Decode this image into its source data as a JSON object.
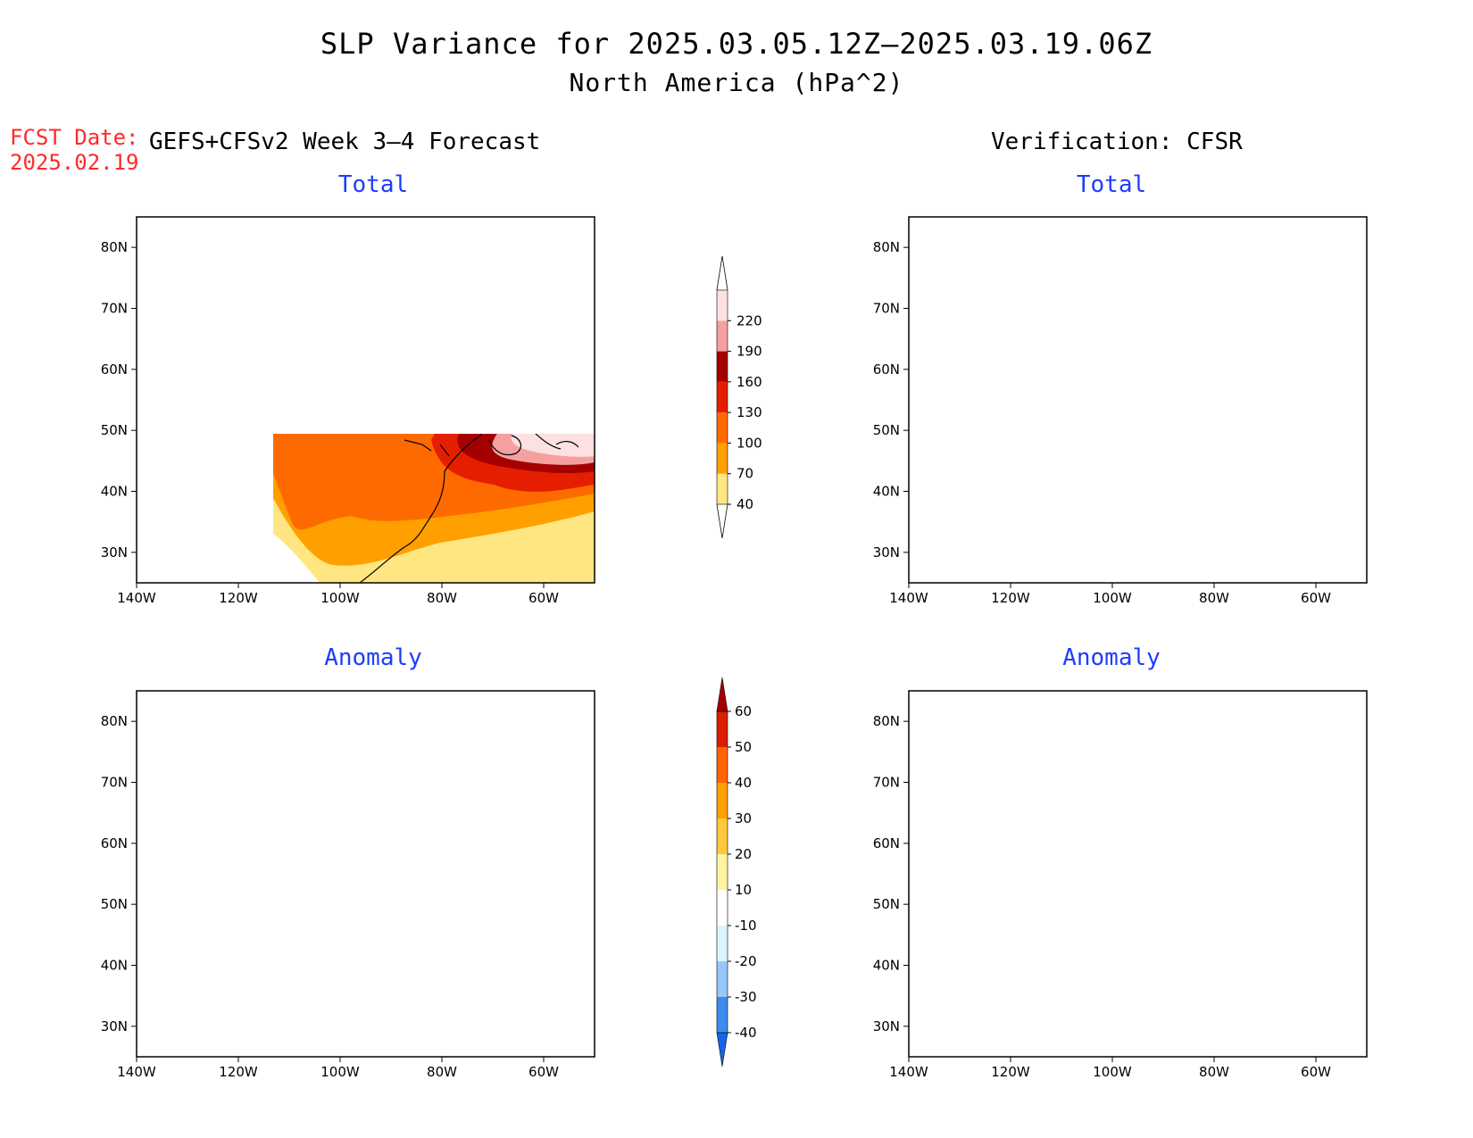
{
  "title": {
    "line1": "SLP Variance for 2025.03.05.12Z–2025.03.19.06Z",
    "line2": "North America (hPa^2)"
  },
  "forecast": {
    "label": "FCST Date:",
    "date": "2025.02.19"
  },
  "headers": {
    "left": "GEFS+CFSv2 Week 3–4 Forecast",
    "right": "Verification: CFSR"
  },
  "panels": [
    {
      "id": "forecast-total",
      "title": "Total",
      "scale": "total"
    },
    {
      "id": "verification-total",
      "title": "Total",
      "scale": "total"
    },
    {
      "id": "forecast-anomaly",
      "title": "Anomaly",
      "scale": "anomaly"
    },
    {
      "id": "verification-anomaly",
      "title": "Anomaly",
      "scale": "anomaly"
    }
  ],
  "axes": {
    "lon_labels": [
      "140W",
      "120W",
      "100W",
      "80W",
      "60W"
    ],
    "lat_labels": [
      "80N",
      "70N",
      "60N",
      "50N",
      "40N",
      "30N"
    ],
    "lon_range": [
      -140,
      -50
    ],
    "lat_range": [
      25,
      85
    ]
  },
  "colorbars": {
    "total": {
      "levels": [
        "40",
        "70",
        "100",
        "130",
        "160",
        "190",
        "220"
      ],
      "colors": [
        "#ffe680",
        "#ffa000",
        "#ff6a00",
        "#e61e00",
        "#a50000",
        "#f5a0a0",
        "#fde0e0"
      ]
    },
    "anomaly": {
      "levels": [
        "-40",
        "-30",
        "-20",
        "-10",
        "10",
        "20",
        "30",
        "40",
        "50",
        "60"
      ],
      "colors": [
        "#1466e6",
        "#3c8cf0",
        "#96c8fa",
        "#dcf5ff",
        "#ffffff",
        "#fff5a0",
        "#ffc83c",
        "#ffa000",
        "#ff6400",
        "#dc1e00",
        "#a50000"
      ]
    }
  }
}
